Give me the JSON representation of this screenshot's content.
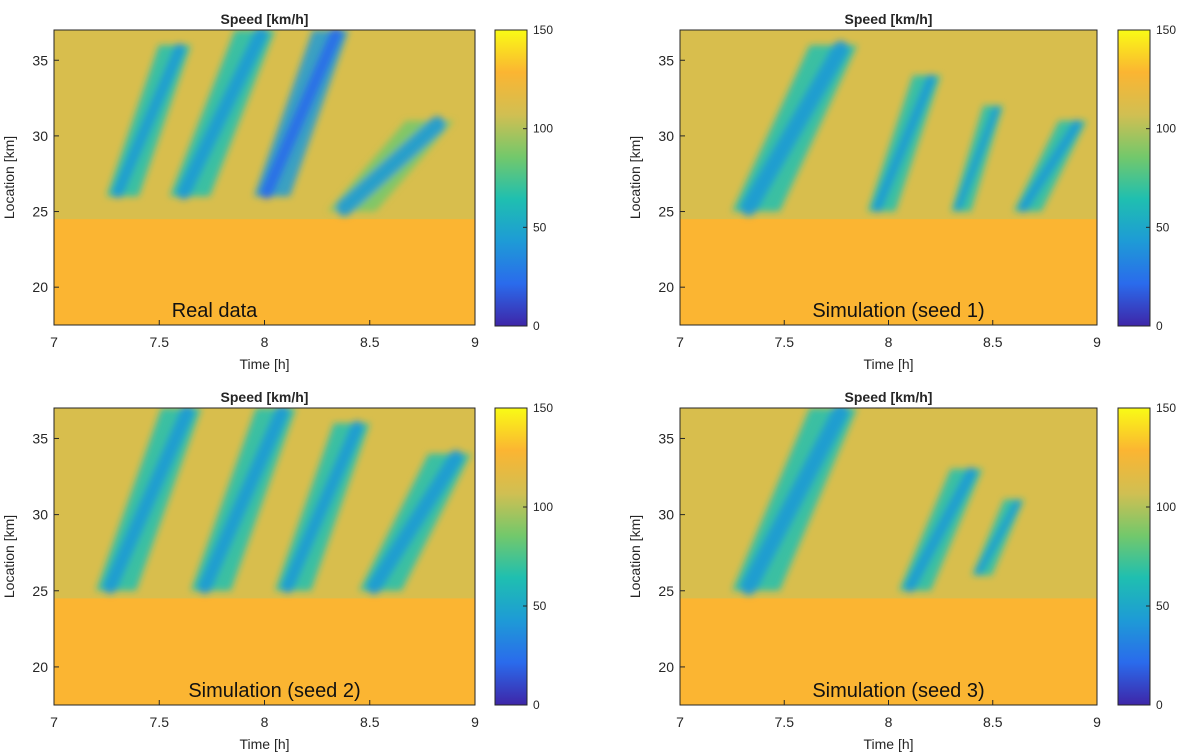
{
  "chart_data": [
    {
      "type": "heatmap",
      "title": "Speed [km/h]",
      "xlabel": "Time [h]",
      "ylabel": "Location [km]",
      "annotation": "Real data",
      "xlim": [
        7,
        9
      ],
      "ylim": [
        17.5,
        37
      ],
      "xticks": [
        "7",
        "7.5",
        "8",
        "8.5",
        "9"
      ],
      "yticks": [
        "20",
        "25",
        "30",
        "35"
      ],
      "colorbar": {
        "range": [
          0,
          150
        ],
        "ticks": [
          "0",
          "50",
          "100",
          "150"
        ]
      },
      "background_speed": 100,
      "congestion_bands": [
        {
          "t_start": 7.25,
          "t_end": 7.65,
          "loc_start": 26,
          "loc_end": 36,
          "min_speed": 45
        },
        {
          "t_start": 7.55,
          "t_end": 8.05,
          "loc_start": 26,
          "loc_end": 37,
          "min_speed": 40
        },
        {
          "t_start": 7.95,
          "t_end": 8.4,
          "loc_start": 26,
          "loc_end": 37,
          "min_speed": 25
        },
        {
          "t_start": 8.3,
          "t_end": 8.9,
          "loc_start": 25,
          "loc_end": 31,
          "min_speed": 50
        }
      ]
    },
    {
      "type": "heatmap",
      "title": "Speed [km/h]",
      "xlabel": "Time [h]",
      "ylabel": "Location [km]",
      "annotation": "Simulation (seed 1)",
      "xlim": [
        7,
        9
      ],
      "ylim": [
        17.5,
        37
      ],
      "xticks": [
        "7",
        "7.5",
        "8",
        "8.5",
        "9"
      ],
      "yticks": [
        "20",
        "25",
        "30",
        "35"
      ],
      "colorbar": {
        "range": [
          0,
          150
        ],
        "ticks": [
          "0",
          "50",
          "100",
          "150"
        ]
      },
      "background_speed": 100,
      "congestion_bands": [
        {
          "t_start": 7.25,
          "t_end": 7.85,
          "loc_start": 25,
          "loc_end": 36,
          "min_speed": 35
        },
        {
          "t_start": 7.9,
          "t_end": 8.25,
          "loc_start": 25,
          "loc_end": 34,
          "min_speed": 35
        },
        {
          "t_start": 8.3,
          "t_end": 8.55,
          "loc_start": 25,
          "loc_end": 32,
          "min_speed": 40
        },
        {
          "t_start": 8.6,
          "t_end": 8.95,
          "loc_start": 25,
          "loc_end": 31,
          "min_speed": 40
        }
      ]
    },
    {
      "type": "heatmap",
      "title": "Speed [km/h]",
      "xlabel": "Time [h]",
      "ylabel": "Location [km]",
      "annotation": "Simulation (seed 2)",
      "xlim": [
        7,
        9
      ],
      "ylim": [
        17.5,
        37
      ],
      "xticks": [
        "7",
        "7.5",
        "8",
        "8.5",
        "9"
      ],
      "yticks": [
        "20",
        "25",
        "30",
        "35"
      ],
      "colorbar": {
        "range": [
          0,
          150
        ],
        "ticks": [
          "0",
          "50",
          "100",
          "150"
        ]
      },
      "background_speed": 100,
      "congestion_bands": [
        {
          "t_start": 7.2,
          "t_end": 7.7,
          "loc_start": 25,
          "loc_end": 37,
          "min_speed": 35
        },
        {
          "t_start": 7.65,
          "t_end": 8.15,
          "loc_start": 25,
          "loc_end": 37,
          "min_speed": 35
        },
        {
          "t_start": 8.05,
          "t_end": 8.5,
          "loc_start": 25,
          "loc_end": 36,
          "min_speed": 35
        },
        {
          "t_start": 8.45,
          "t_end": 8.98,
          "loc_start": 25,
          "loc_end": 34,
          "min_speed": 40
        }
      ]
    },
    {
      "type": "heatmap",
      "title": "Speed [km/h]",
      "xlabel": "Time [h]",
      "ylabel": "Location [km]",
      "annotation": "Simulation (seed 3)",
      "xlim": [
        7,
        9
      ],
      "ylim": [
        17.5,
        37
      ],
      "xticks": [
        "7",
        "7.5",
        "8",
        "8.5",
        "9"
      ],
      "yticks": [
        "20",
        "25",
        "30",
        "35"
      ],
      "colorbar": {
        "range": [
          0,
          150
        ],
        "ticks": [
          "0",
          "50",
          "100",
          "150"
        ]
      },
      "background_speed": 100,
      "congestion_bands": [
        {
          "t_start": 7.25,
          "t_end": 7.85,
          "loc_start": 25,
          "loc_end": 37,
          "min_speed": 35
        },
        {
          "t_start": 8.05,
          "t_end": 8.45,
          "loc_start": 25,
          "loc_end": 33,
          "min_speed": 40
        },
        {
          "t_start": 8.4,
          "t_end": 8.65,
          "loc_start": 26,
          "loc_end": 31,
          "min_speed": 45
        }
      ]
    }
  ],
  "colors": {
    "free_flow": "#e6bf5c",
    "mid": "#3dbd9e",
    "congested": "#1f78c7",
    "colormap": [
      "#3e26a8",
      "#2a6bec",
      "#1e9bd6",
      "#1fbfb0",
      "#73c86b",
      "#d1bf52",
      "#fbb532",
      "#f9fb15"
    ]
  }
}
